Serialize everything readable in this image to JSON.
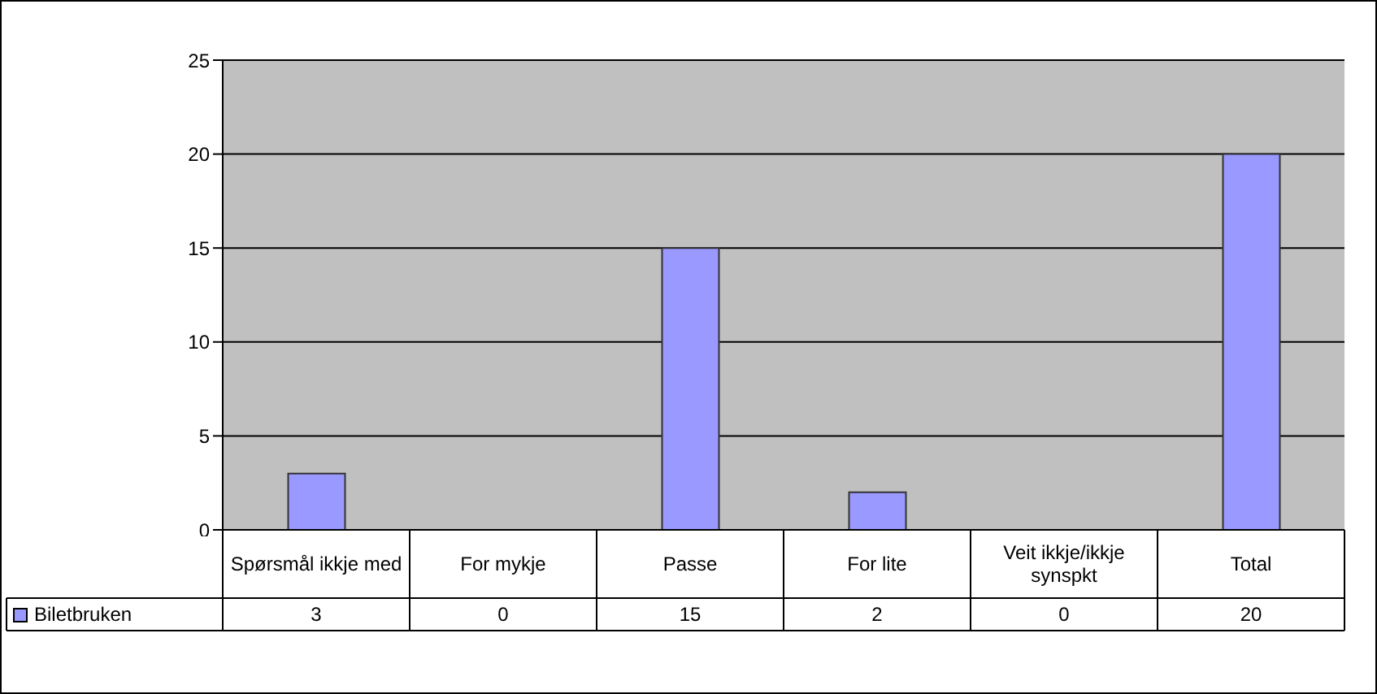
{
  "chart_data": {
    "type": "bar",
    "categories": [
      "Spørsmål ikkje med",
      "For mykje",
      "Passe",
      "For lite",
      "Veit ikkje/ikkje synspkt",
      "Total"
    ],
    "series": [
      {
        "name": "Biletbruken",
        "color": "#9999ff",
        "values": [
          3,
          0,
          15,
          2,
          0,
          20
        ]
      }
    ],
    "ylim": [
      0,
      25
    ],
    "yticks": [
      0,
      5,
      10,
      15,
      20,
      25
    ],
    "grid": "y",
    "legend": "bottom",
    "data_labels": true
  }
}
